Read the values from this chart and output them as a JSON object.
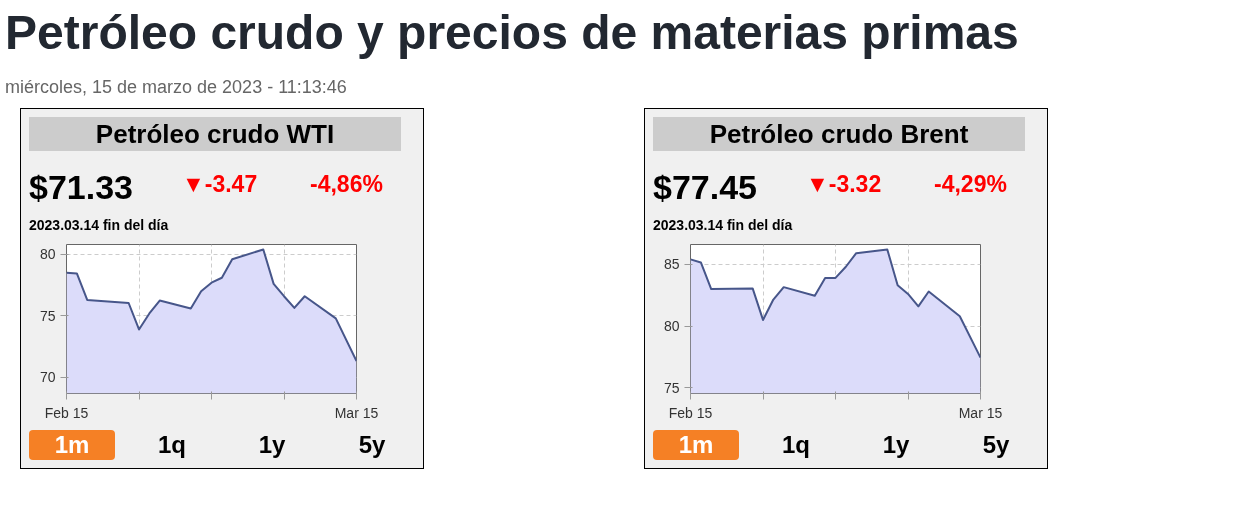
{
  "chart_data": [
    {
      "type": "area",
      "title": "Petróleo crudo WTI",
      "color": "#47568a",
      "annotations": [
        "Petróleo crudo y precios de materias primas",
        "miércoles, 15 de marzo de 2023 - 11:13:46",
        "$71.33",
        "▼-3.47",
        "-4,86%",
        "2023.03.14 fin del día",
        "1m",
        "1q",
        "1y",
        "5y"
      ],
      "x": [
        "2023-02-15",
        "2023-02-16",
        "2023-02-17",
        "2023-02-21",
        "2023-02-22",
        "2023-02-23",
        "2023-02-24",
        "2023-02-27",
        "2023-02-28",
        "2023-03-01",
        "2023-03-02",
        "2023-03-03",
        "2023-03-06",
        "2023-03-07",
        "2023-03-08",
        "2023-03-09",
        "2023-03-10",
        "2023-03-13",
        "2023-03-15"
      ],
      "values": [
        78.5,
        78.45,
        76.3,
        76.05,
        73.9,
        75.2,
        76.25,
        75.6,
        77.0,
        77.7,
        78.1,
        79.6,
        80.4,
        77.6,
        76.6,
        75.65,
        76.6,
        74.8,
        71.33
      ],
      "xlim": [
        "2023-02-15",
        "2023-03-15"
      ],
      "xticks": [
        {
          "value": "2023-02-15",
          "label": "Feb 15"
        },
        {
          "value": "2023-02-22",
          "label": null
        },
        {
          "value": "2023-03-01",
          "label": null
        },
        {
          "value": "2023-03-08",
          "label": null
        },
        {
          "value": "2023-03-15",
          "label": "Mar 15"
        }
      ],
      "ylim": [
        68.7,
        80.8
      ],
      "yticks": [
        70,
        75,
        80
      ],
      "grid": true
    },
    {
      "type": "area",
      "title": "Petróleo crudo Brent",
      "color": "#47568a",
      "annotations": [
        "$77.45",
        "▼-3.32",
        "-4,29%",
        "2023.03.14 fin del día",
        "1m",
        "1q",
        "1y",
        "5y"
      ],
      "x": [
        "2023-02-15",
        "2023-02-16",
        "2023-02-17",
        "2023-02-21",
        "2023-02-22",
        "2023-02-23",
        "2023-02-24",
        "2023-02-27",
        "2023-02-28",
        "2023-03-01",
        "2023-03-02",
        "2023-03-03",
        "2023-03-06",
        "2023-03-07",
        "2023-03-08",
        "2023-03-09",
        "2023-03-10",
        "2023-03-13",
        "2023-03-15"
      ],
      "values": [
        85.4,
        85.15,
        83.0,
        83.05,
        80.5,
        82.15,
        83.15,
        82.45,
        83.9,
        83.9,
        84.8,
        85.9,
        86.2,
        83.3,
        82.6,
        81.6,
        82.8,
        80.8,
        77.45
      ],
      "xlim": [
        "2023-02-15",
        "2023-03-15"
      ],
      "xticks": [
        {
          "value": "2023-02-15",
          "label": "Feb 15"
        },
        {
          "value": "2023-02-22",
          "label": null
        },
        {
          "value": "2023-03-01",
          "label": null
        },
        {
          "value": "2023-03-08",
          "label": null
        },
        {
          "value": "2023-03-15",
          "label": "Mar 15"
        }
      ],
      "ylim": [
        74.55,
        86.6
      ],
      "yticks": [
        75,
        80,
        85
      ],
      "grid": true
    }
  ]
}
